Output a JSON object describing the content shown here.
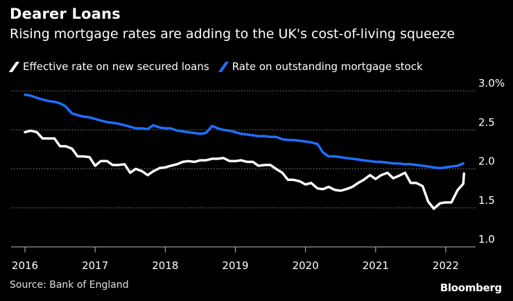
{
  "chart_data": {
    "type": "line",
    "title": "Dearer Loans",
    "subtitle": "Rising mortgage rates are adding to the UK's cost-of-living squeeze",
    "xlabel": "",
    "ylabel": "",
    "xlim": [
      2016,
      2022.35
    ],
    "ylim": [
      1.0,
      3.0
    ],
    "x_ticks": [
      2016,
      2017,
      2018,
      2019,
      2020,
      2021,
      2022
    ],
    "x_tick_labels": [
      "2016",
      "2017",
      "2018",
      "2019",
      "2020",
      "2021",
      "2022"
    ],
    "y_ticks": [
      1.0,
      1.5,
      2.0,
      2.5,
      3.0
    ],
    "y_tick_labels": [
      "1.0",
      "1.5",
      "2.0",
      "2.5",
      "3.0%"
    ],
    "grid": "horizontal dotted",
    "legend_position": "top-left",
    "series": [
      {
        "name": "Effective rate on new secured loans",
        "color": "#ffffff",
        "x": [
          2016.0,
          2016.08,
          2016.17,
          2016.25,
          2016.33,
          2016.42,
          2016.5,
          2016.58,
          2016.67,
          2016.75,
          2016.83,
          2016.92,
          2017.0,
          2017.08,
          2017.17,
          2017.25,
          2017.33,
          2017.42,
          2017.5,
          2017.58,
          2017.67,
          2017.75,
          2017.83,
          2017.92,
          2018.0,
          2018.08,
          2018.17,
          2018.25,
          2018.33,
          2018.42,
          2018.5,
          2018.58,
          2018.67,
          2018.75,
          2018.83,
          2018.92,
          2019.0,
          2019.08,
          2019.17,
          2019.25,
          2019.33,
          2019.42,
          2019.5,
          2019.58,
          2019.67,
          2019.75,
          2019.83,
          2019.92,
          2020.0,
          2020.08,
          2020.17,
          2020.25,
          2020.33,
          2020.42,
          2020.5,
          2020.58,
          2020.67,
          2020.75,
          2020.83,
          2020.92,
          2021.0,
          2021.08,
          2021.17,
          2021.25,
          2021.33,
          2021.42,
          2021.5,
          2021.58,
          2021.67,
          2021.75,
          2021.83,
          2021.92,
          2022.0,
          2022.08,
          2022.17,
          2022.25,
          2022.26
        ],
        "values": [
          2.47,
          2.49,
          2.47,
          2.39,
          2.39,
          2.39,
          2.29,
          2.29,
          2.26,
          2.16,
          2.16,
          2.15,
          2.04,
          2.1,
          2.1,
          2.05,
          2.05,
          2.06,
          1.95,
          2.0,
          1.97,
          1.92,
          1.97,
          2.01,
          2.02,
          2.04,
          2.06,
          2.09,
          2.1,
          2.09,
          2.11,
          2.11,
          2.13,
          2.13,
          2.14,
          2.1,
          2.1,
          2.11,
          2.09,
          2.09,
          2.04,
          2.05,
          2.05,
          2.0,
          1.95,
          1.86,
          1.86,
          1.84,
          1.8,
          1.82,
          1.75,
          1.74,
          1.77,
          1.73,
          1.72,
          1.74,
          1.77,
          1.82,
          1.86,
          1.92,
          1.87,
          1.92,
          1.95,
          1.88,
          1.91,
          1.95,
          1.82,
          1.82,
          1.78,
          1.58,
          1.49,
          1.56,
          1.57,
          1.57,
          1.73,
          1.81,
          1.94
        ]
      },
      {
        "name": "Rate on outstanding mortgage stock",
        "color": "#1f6fff",
        "x": [
          2016.0,
          2016.08,
          2016.17,
          2016.25,
          2016.33,
          2016.42,
          2016.5,
          2016.58,
          2016.67,
          2016.75,
          2016.83,
          2016.92,
          2017.0,
          2017.08,
          2017.17,
          2017.25,
          2017.33,
          2017.42,
          2017.5,
          2017.58,
          2017.67,
          2017.75,
          2017.83,
          2017.92,
          2018.0,
          2018.08,
          2018.17,
          2018.25,
          2018.33,
          2018.42,
          2018.5,
          2018.58,
          2018.67,
          2018.75,
          2018.83,
          2018.92,
          2019.0,
          2019.08,
          2019.17,
          2019.25,
          2019.33,
          2019.42,
          2019.5,
          2019.58,
          2019.67,
          2019.75,
          2019.83,
          2019.92,
          2020.0,
          2020.08,
          2020.17,
          2020.25,
          2020.33,
          2020.42,
          2020.5,
          2020.58,
          2020.67,
          2020.75,
          2020.83,
          2020.92,
          2021.0,
          2021.08,
          2021.17,
          2021.25,
          2021.33,
          2021.42,
          2021.5,
          2021.58,
          2021.67,
          2021.75,
          2021.83,
          2021.92,
          2022.0,
          2022.08,
          2022.17,
          2022.25
        ],
        "values": [
          2.95,
          2.94,
          2.91,
          2.89,
          2.87,
          2.86,
          2.84,
          2.8,
          2.71,
          2.69,
          2.67,
          2.66,
          2.64,
          2.62,
          2.6,
          2.59,
          2.58,
          2.56,
          2.54,
          2.52,
          2.52,
          2.51,
          2.56,
          2.53,
          2.52,
          2.52,
          2.49,
          2.48,
          2.47,
          2.46,
          2.45,
          2.46,
          2.55,
          2.52,
          2.5,
          2.49,
          2.47,
          2.45,
          2.44,
          2.43,
          2.42,
          2.42,
          2.41,
          2.41,
          2.38,
          2.37,
          2.37,
          2.36,
          2.35,
          2.34,
          2.32,
          2.21,
          2.16,
          2.16,
          2.15,
          2.14,
          2.13,
          2.12,
          2.11,
          2.1,
          2.09,
          2.09,
          2.08,
          2.07,
          2.07,
          2.06,
          2.06,
          2.05,
          2.04,
          2.03,
          2.02,
          2.01,
          2.02,
          2.03,
          2.04,
          2.07
        ]
      }
    ],
    "source": "Source: Bank of England"
  },
  "brand": "Bloomberg",
  "colors": {
    "background": "#000000",
    "grid": "#8c8c8c",
    "axis": "#bfbfbf",
    "text": "#ffffff"
  }
}
